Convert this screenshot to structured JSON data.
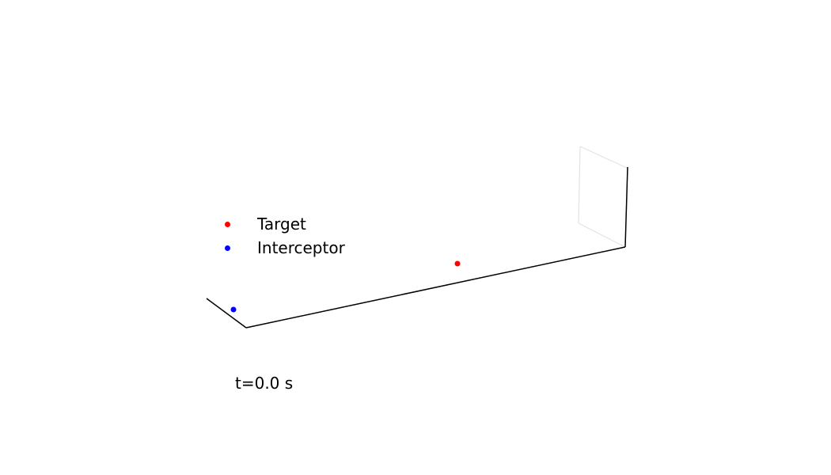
{
  "chart_data": {
    "type": "scatter",
    "projection": "3d",
    "time_label": "t=0.0 s",
    "legend_placement": "center-left",
    "grid": false,
    "series": [
      {
        "name": "Target",
        "color": "#ff0000"
      },
      {
        "name": "Interceptor",
        "color": "#0000ff"
      }
    ],
    "colors": {
      "axis": "#000000",
      "pane_edge": "#e6e6e6"
    }
  }
}
